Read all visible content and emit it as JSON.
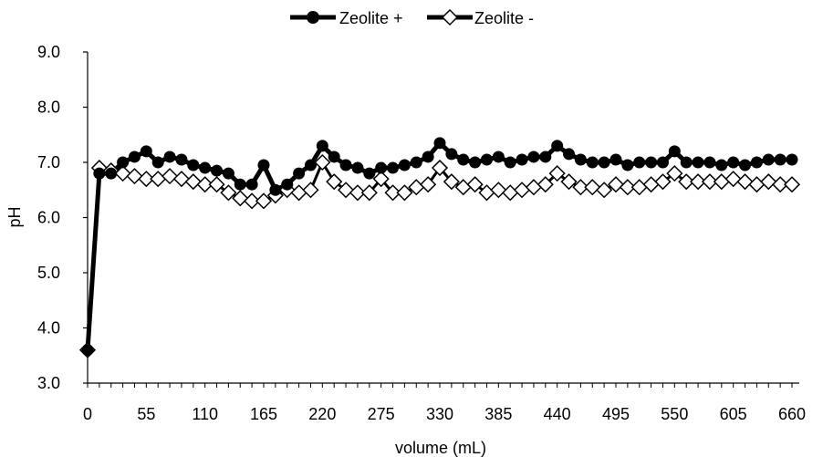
{
  "chart_data": {
    "type": "line",
    "title": "",
    "xlabel": "volume (mL)",
    "ylabel": "pH",
    "xlim": [
      0,
      660
    ],
    "ylim": [
      3.0,
      9.0
    ],
    "x_ticks": [
      "0",
      "55",
      "110",
      "165",
      "220",
      "275",
      "330",
      "385",
      "440",
      "495",
      "550",
      "605",
      "660"
    ],
    "y_ticks": [
      "3.0",
      "4.0",
      "5.0",
      "6.0",
      "7.0",
      "8.0",
      "9.0"
    ],
    "legend_position": "top-center",
    "grid": false,
    "x": [
      0,
      11,
      22,
      33,
      44,
      55,
      66,
      77,
      88,
      99,
      110,
      121,
      132,
      143,
      154,
      165,
      176,
      187,
      198,
      209,
      220,
      231,
      242,
      253,
      264,
      275,
      286,
      297,
      308,
      319,
      330,
      341,
      352,
      363,
      374,
      385,
      396,
      407,
      418,
      429,
      440,
      451,
      462,
      473,
      484,
      495,
      506,
      517,
      528,
      539,
      550,
      561,
      572,
      583,
      594,
      605,
      616,
      627,
      638,
      649,
      660
    ],
    "series": [
      {
        "name": "Zeolite +",
        "marker": "filled-circle",
        "color": "#000000",
        "values": [
          3.6,
          6.8,
          6.8,
          7.0,
          7.1,
          7.2,
          7.0,
          7.1,
          7.05,
          6.95,
          6.9,
          6.85,
          6.8,
          6.6,
          6.6,
          6.95,
          6.5,
          6.6,
          6.8,
          6.95,
          7.3,
          7.1,
          6.95,
          6.9,
          6.8,
          6.9,
          6.9,
          6.95,
          7.0,
          7.1,
          7.35,
          7.15,
          7.05,
          7.0,
          7.05,
          7.1,
          7.0,
          7.05,
          7.1,
          7.1,
          7.3,
          7.15,
          7.05,
          7.0,
          7.0,
          7.05,
          6.95,
          7.0,
          7.0,
          7.0,
          7.2,
          7.0,
          7.0,
          7.0,
          6.95,
          7.0,
          6.95,
          7.0,
          7.05,
          7.05,
          7.05
        ]
      },
      {
        "name": "Zeolite -",
        "marker": "open-diamond",
        "color": "#000000",
        "values": [
          3.6,
          6.9,
          6.85,
          6.8,
          6.75,
          6.7,
          6.7,
          6.75,
          6.7,
          6.65,
          6.6,
          6.6,
          6.45,
          6.35,
          6.3,
          6.3,
          6.4,
          6.5,
          6.45,
          6.5,
          7.0,
          6.65,
          6.5,
          6.45,
          6.45,
          6.7,
          6.45,
          6.45,
          6.55,
          6.6,
          6.9,
          6.65,
          6.55,
          6.6,
          6.45,
          6.5,
          6.45,
          6.5,
          6.55,
          6.6,
          6.8,
          6.65,
          6.55,
          6.55,
          6.5,
          6.6,
          6.55,
          6.55,
          6.6,
          6.65,
          6.8,
          6.65,
          6.65,
          6.65,
          6.65,
          6.7,
          6.65,
          6.6,
          6.65,
          6.6,
          6.6
        ]
      }
    ]
  }
}
